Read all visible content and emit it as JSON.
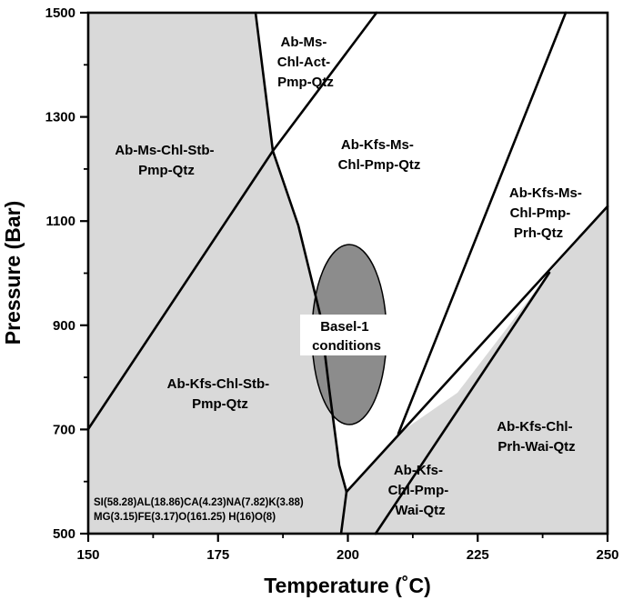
{
  "diagram": {
    "x_axis": {
      "title": "Temperature (˚C)",
      "min": 150,
      "max": 250,
      "ticks": [
        "150",
        "175",
        "200",
        "225",
        "250"
      ]
    },
    "y_axis": {
      "title": "Pressure (Bar)",
      "min": 500,
      "max": 1500,
      "ticks": [
        "500",
        "700",
        "900",
        "1100",
        "1300",
        "1500"
      ]
    },
    "fields": [
      {
        "lines": [
          "Ab-Ms-",
          "Chl-Act-",
          "Pmp-Qtz"
        ]
      },
      {
        "lines": [
          "Ab-Ms-Chl-Stb-",
          "Pmp-Qtz"
        ]
      },
      {
        "lines": [
          "Ab-Kfs-Ms-",
          "Chl-Pmp-Qtz"
        ]
      },
      {
        "lines": [
          "Ab-Kfs-Ms-",
          "Chl-Pmp-",
          "Prh-Qtz"
        ]
      },
      {
        "lines": [
          "Ab-Kfs-Chl-Stb-",
          "Pmp-Qtz"
        ]
      },
      {
        "lines": [
          "Ab-Kfs-Chl-",
          "Prh-Wai-Qtz"
        ]
      },
      {
        "lines": [
          "Ab-Kfs-",
          "Chl-Pmp-",
          "Wai-Qtz"
        ]
      }
    ],
    "conditions_label": [
      "Basel-1",
      "conditions"
    ],
    "composition": [
      "SI(58.28)AL(18.86)CA(4.23)NA(7.82)K(3.88)",
      "MG(3.15)FE(3.17)O(161.25) H(16)O(8)"
    ],
    "colors": {
      "shaded_field": "#d9d9d9",
      "conditions_ellipse": "#8c8c8c",
      "lines": "#000000",
      "background": "#ffffff"
    }
  }
}
